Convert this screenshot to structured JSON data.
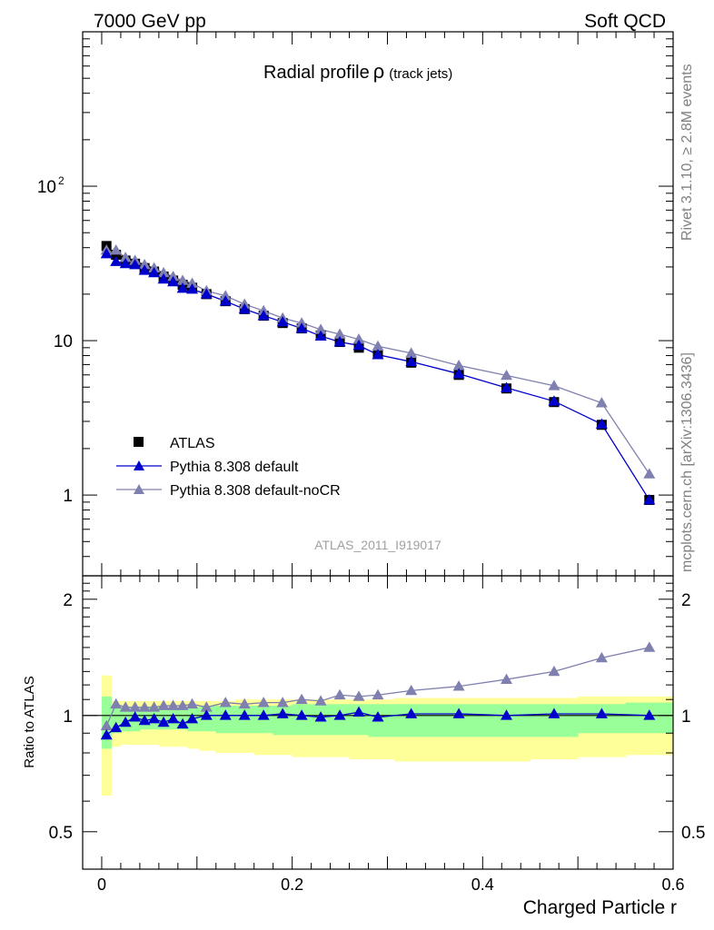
{
  "header": {
    "left": "7000 GeV pp",
    "right": "Soft QCD"
  },
  "side_text": {
    "rivet": "Rivet 3.1.10, ≥ 2.8M events",
    "mcplots": "mcplots.cern.ch [arXiv:1306.3436]"
  },
  "plot_label": "ATLAS_2011_I919017",
  "title": {
    "main": "Radial profile",
    "symbol": "ρ",
    "sub": "(track jets)"
  },
  "legend": {
    "data": "ATLAS",
    "mc1": "Pythia 8.308 default",
    "mc2": "Pythia 8.308 default-noCR"
  },
  "colors": {
    "data": "#000000",
    "mc1": "#0000cc",
    "mc2": "#8080b0",
    "band_inner": "#99ff99",
    "band_outer": "#ffff99"
  },
  "chart_data": {
    "type": "line",
    "xlabel": "Charged Particle r",
    "ylabel_ratio": "Ratio to ATLAS",
    "xlim": [
      -0.02,
      0.6
    ],
    "ylim": [
      0.3,
      1000
    ],
    "ylog": true,
    "ratio_ylim": [
      0.4,
      2.3
    ],
    "ratio_ylog": true,
    "x_ticks": [
      "0",
      "0.2",
      "0.4",
      "0.6"
    ],
    "y_ticks": [
      "1",
      "10",
      "10²"
    ],
    "ratio_ticks": [
      "0.5",
      "1",
      "2"
    ],
    "x": [
      0.005,
      0.015,
      0.025,
      0.035,
      0.045,
      0.055,
      0.065,
      0.075,
      0.085,
      0.095,
      0.11,
      0.13,
      0.15,
      0.17,
      0.19,
      0.21,
      0.23,
      0.25,
      0.27,
      0.29,
      0.325,
      0.375,
      0.425,
      0.475,
      0.525,
      0.575
    ],
    "series": [
      {
        "name": "ATLAS",
        "values": [
          41.0,
          36.0,
          33.0,
          31.5,
          29.5,
          28.0,
          26.0,
          24.5,
          23.0,
          22.0,
          20.0,
          18.0,
          16.0,
          14.5,
          13.0,
          12.0,
          10.8,
          9.8,
          9.0,
          8.2,
          7.2,
          6.0,
          4.9,
          4.0,
          2.85,
          0.93
        ]
      },
      {
        "name": "Pythia 8.308 default",
        "values": [
          36.5,
          32.5,
          31.5,
          31.0,
          28.5,
          27.5,
          25.0,
          24.0,
          21.8,
          21.5,
          20.0,
          18.0,
          16.0,
          14.5,
          13.2,
          12.0,
          10.7,
          9.8,
          9.3,
          8.1,
          7.3,
          6.1,
          4.95,
          4.05,
          2.88,
          0.93
        ]
      },
      {
        "name": "Pythia 8.308 default-noCR",
        "values": [
          38.5,
          38.5,
          34.5,
          33.0,
          31.0,
          29.5,
          27.5,
          26.0,
          24.5,
          23.5,
          21.0,
          19.5,
          17.2,
          15.6,
          14.0,
          13.0,
          11.8,
          11.0,
          10.2,
          9.2,
          8.3,
          6.9,
          5.95,
          5.1,
          3.95,
          1.37
        ]
      }
    ],
    "ratio": {
      "mc1": [
        0.89,
        0.93,
        0.96,
        0.99,
        0.97,
        0.98,
        0.96,
        0.98,
        0.95,
        0.98,
        1.0,
        1.0,
        1.0,
        1.0,
        1.01,
        1.0,
        0.99,
        1.0,
        1.02,
        0.99,
        1.01,
        1.01,
        1.0,
        1.01,
        1.01,
        1.0
      ],
      "mc2": [
        0.94,
        1.07,
        1.05,
        1.05,
        1.05,
        1.05,
        1.06,
        1.06,
        1.06,
        1.07,
        1.05,
        1.08,
        1.07,
        1.08,
        1.08,
        1.1,
        1.09,
        1.13,
        1.12,
        1.13,
        1.16,
        1.19,
        1.24,
        1.3,
        1.41,
        1.5
      ]
    },
    "band_inner": {
      "lo": [
        0.82,
        0.9,
        0.91,
        0.91,
        0.92,
        0.92,
        0.92,
        0.92,
        0.92,
        0.91,
        0.91,
        0.9,
        0.9,
        0.9,
        0.89,
        0.89,
        0.89,
        0.89,
        0.89,
        0.88,
        0.88,
        0.88,
        0.88,
        0.88,
        0.9,
        0.9
      ],
      "hi": [
        1.12,
        1.05,
        1.05,
        1.05,
        1.05,
        1.05,
        1.05,
        1.05,
        1.05,
        1.05,
        1.06,
        1.06,
        1.06,
        1.06,
        1.06,
        1.07,
        1.07,
        1.07,
        1.07,
        1.07,
        1.07,
        1.07,
        1.07,
        1.07,
        1.07,
        1.08
      ]
    },
    "band_outer": {
      "lo": [
        0.62,
        0.83,
        0.84,
        0.84,
        0.84,
        0.84,
        0.83,
        0.83,
        0.83,
        0.82,
        0.81,
        0.8,
        0.8,
        0.79,
        0.79,
        0.78,
        0.78,
        0.78,
        0.77,
        0.77,
        0.76,
        0.76,
        0.76,
        0.77,
        0.78,
        0.79
      ],
      "hi": [
        1.27,
        1.09,
        1.09,
        1.09,
        1.09,
        1.09,
        1.09,
        1.09,
        1.09,
        1.09,
        1.09,
        1.09,
        1.1,
        1.1,
        1.1,
        1.1,
        1.1,
        1.1,
        1.1,
        1.1,
        1.11,
        1.11,
        1.11,
        1.11,
        1.12,
        1.12
      ]
    }
  }
}
